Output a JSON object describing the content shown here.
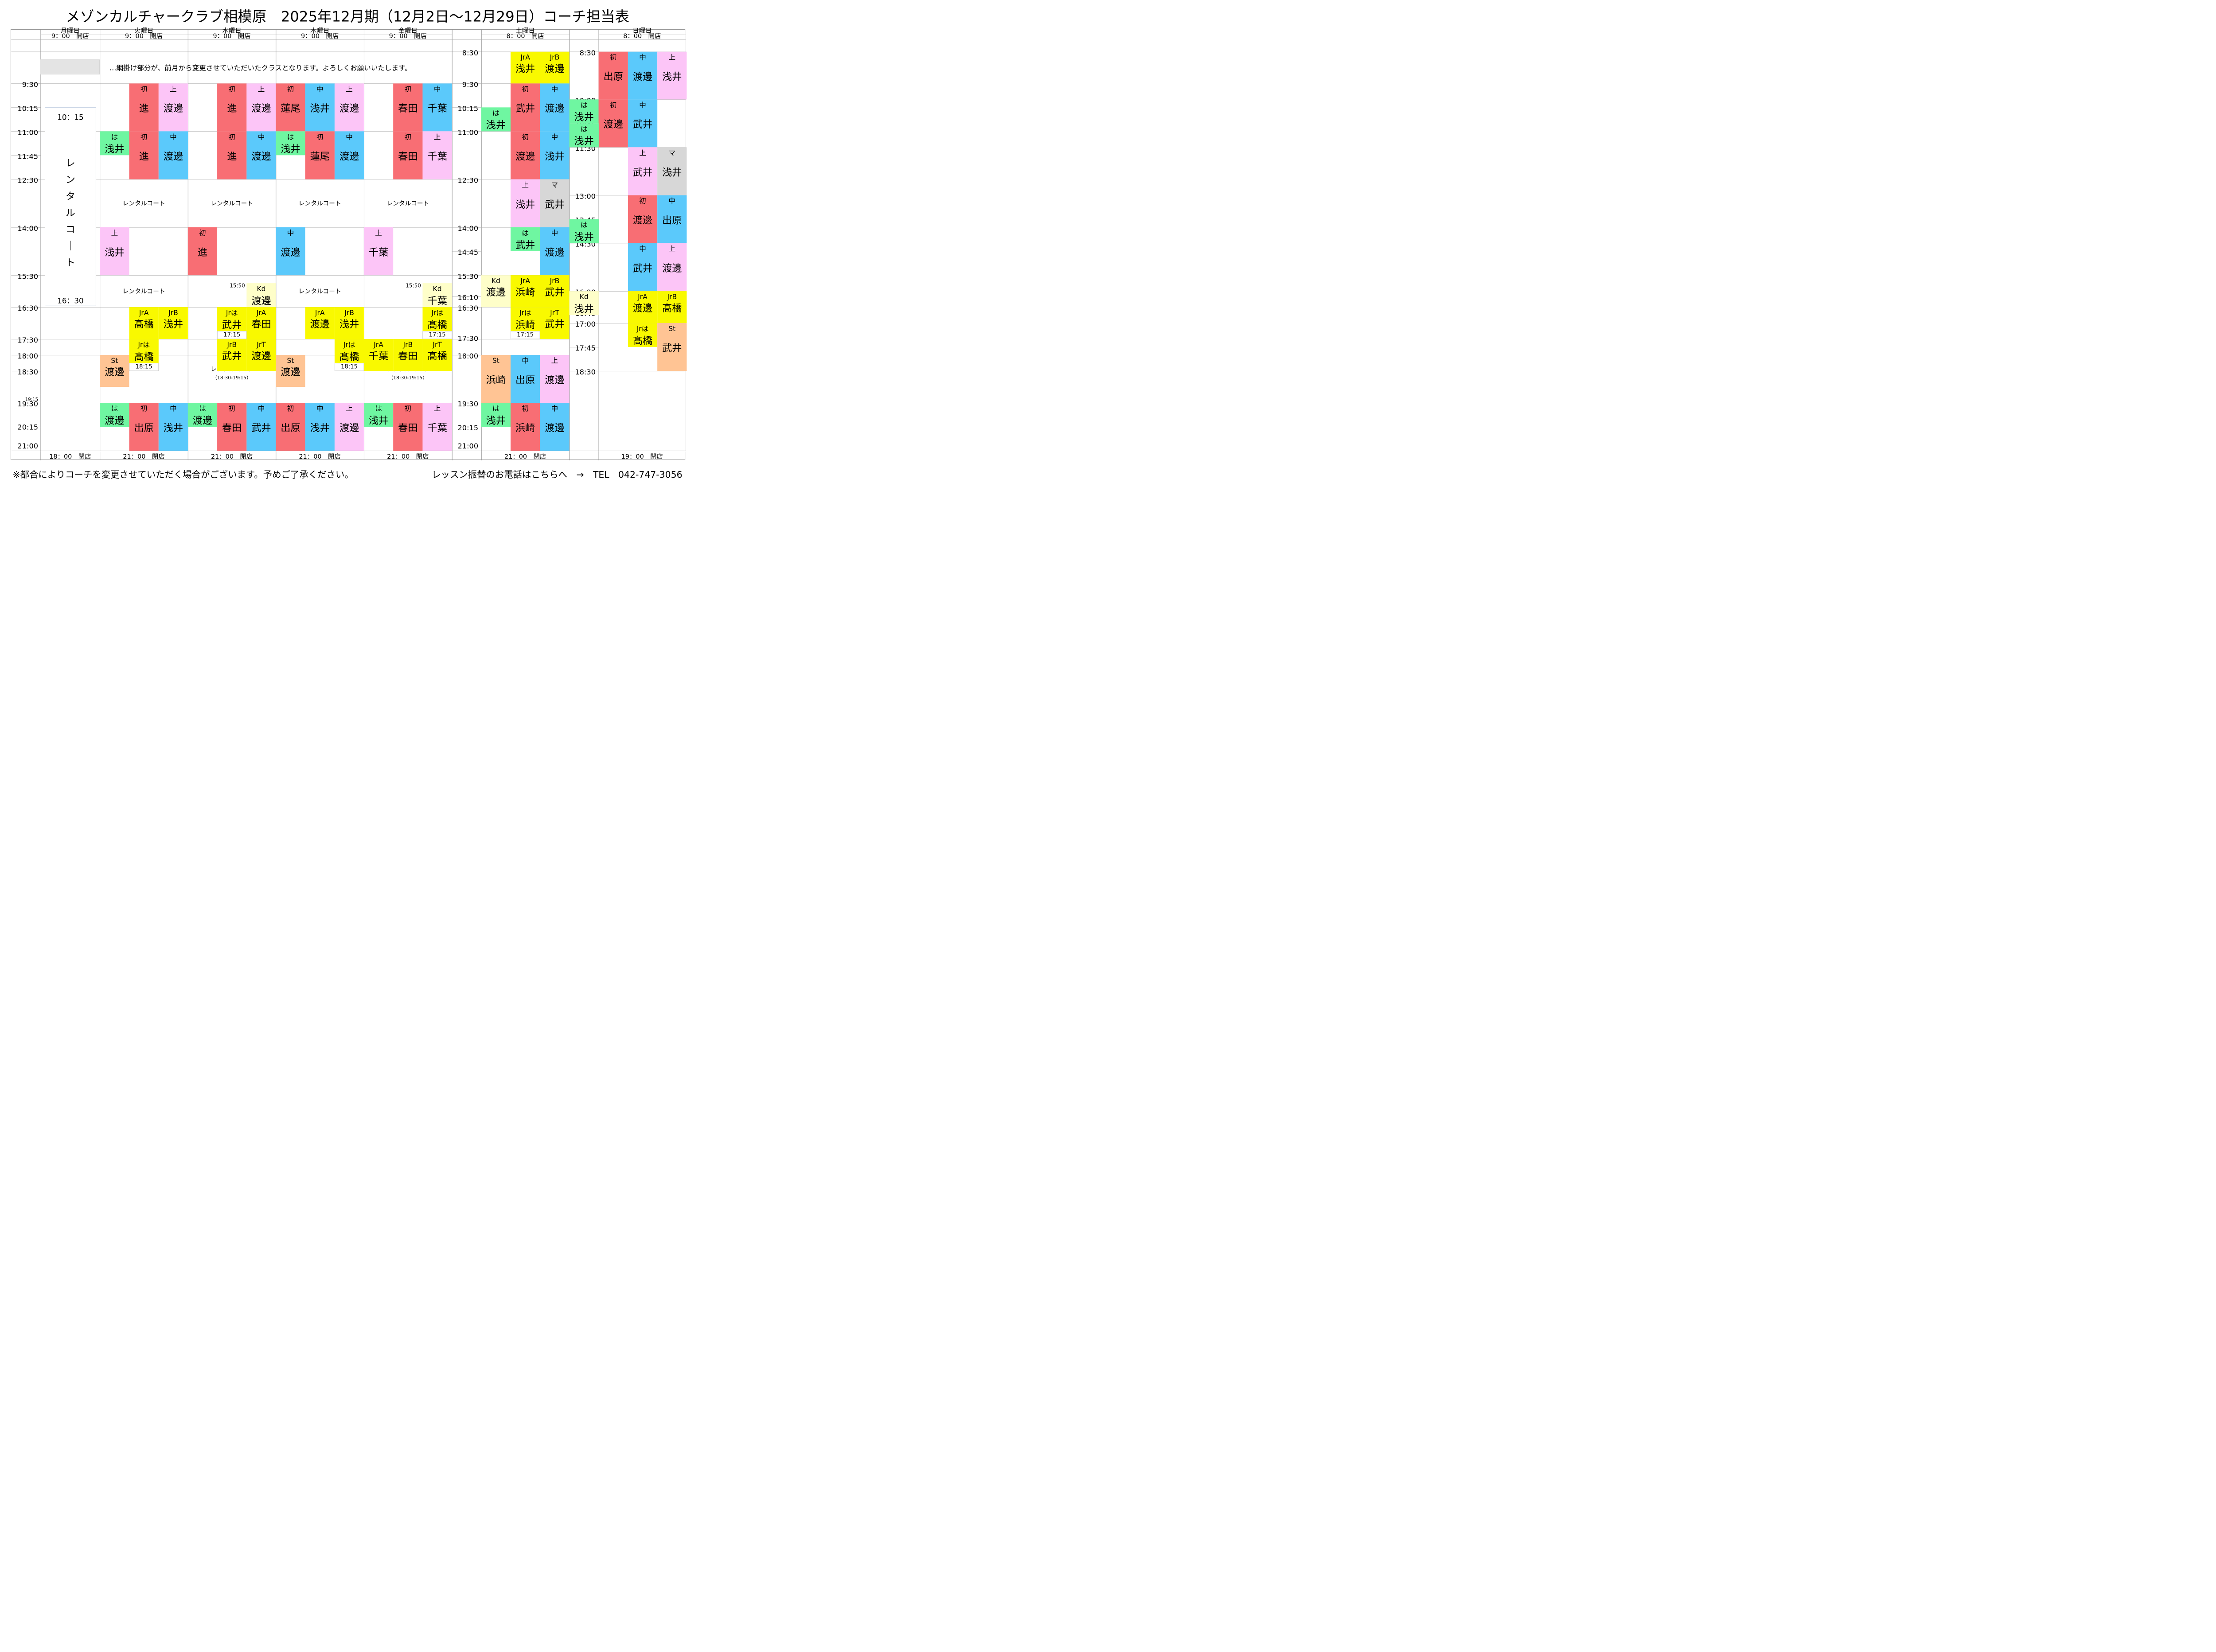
{
  "title": "メゾンカルチャークラブ相模原　2025年12月期（12月2日～12月29日）コーチ担当表",
  "legend": "…網掛け部分が、前月から変更させていただいたクラスとなります。よろしくお願いいたします。",
  "colors": {
    "beginner": "#F86E74",
    "intermediate": "#5BC9FB",
    "advanced": "#FCC5F7",
    "hajime": "#6FF6A1",
    "junior": "#F9F900",
    "kids": "#FEFEC9",
    "stroke": "#FFC494",
    "master": "#D7D7D7"
  },
  "days": {
    "mon": {
      "name": "月曜日",
      "open": "9：00　開店",
      "close": "18：00　閉店"
    },
    "tue": {
      "name": "火曜日",
      "open": "9：00　開店",
      "close": "21：00　閉店"
    },
    "wed": {
      "name": "水曜日",
      "open": "9：00　開店",
      "close": "21：00　閉店"
    },
    "thu": {
      "name": "木曜日",
      "open": "9：00　開店",
      "close": "21：00　閉店"
    },
    "fri": {
      "name": "金曜日",
      "open": "9：00　開店",
      "close": "21：00　閉店"
    },
    "sat": {
      "name": "土曜日",
      "open": "8：00　開店",
      "close": "21：00　閉店"
    },
    "sun": {
      "name": "日曜日",
      "open": "8：00　開店",
      "close": "19：00　閉店"
    }
  },
  "times": {
    "wk": [
      "9:30",
      "10:15",
      "11:00",
      "11:45",
      "12:30",
      "14:00",
      "15:30",
      "16:30",
      "17:30",
      "18:00",
      "18:30",
      "19:15",
      "19:30",
      "20:15",
      "21:00"
    ],
    "sat": [
      "8:30",
      "9:30",
      "10:15",
      "11:00",
      "12:30",
      "14:00",
      "14:45",
      "15:30",
      "16:10",
      "16:30",
      "17:30",
      "18:00",
      "19:30",
      "20:15",
      "21:00"
    ],
    "sun": [
      "8:30",
      "10:00",
      "10:45",
      "11:30",
      "13:00",
      "13:45",
      "14:30",
      "16:00",
      "16:40",
      "17:00",
      "17:45",
      "18:30"
    ]
  },
  "rental_court": "レンタルコート",
  "rental_court_sub": "（18:30-19:15）",
  "mon_rental": {
    "start": "10：15",
    "end": "16：30",
    "label": "レンタルコート"
  },
  "end_times": {
    "e1815": "18:15",
    "e1715": "17:15",
    "s1550": "15:50"
  },
  "classes": [
    {
      "lv": "初",
      "nm": "進",
      "c": "b"
    },
    {
      "lv": "上",
      "nm": "渡邊",
      "c": "a"
    },
    {
      "lv": "は",
      "nm": "浅井",
      "c": "h"
    },
    {
      "lv": "初",
      "nm": "進",
      "c": "b"
    },
    {
      "lv": "中",
      "nm": "渡邊",
      "c": "i"
    },
    {
      "lv": "上",
      "nm": "浅井",
      "c": "a"
    },
    {
      "lv": "JrA",
      "nm": "髙橋",
      "c": "j"
    },
    {
      "lv": "JrB",
      "nm": "浅井",
      "c": "j"
    },
    {
      "lv": "Jrは",
      "nm": "髙橋",
      "c": "j"
    },
    {
      "lv": "St",
      "nm": "渡邊",
      "c": "s"
    },
    {
      "lv": "は",
      "nm": "渡邊",
      "c": "h"
    },
    {
      "lv": "初",
      "nm": "出原",
      "c": "b"
    },
    {
      "lv": "中",
      "nm": "浅井",
      "c": "i"
    },
    {
      "lv": "初",
      "nm": "進",
      "c": "b"
    },
    {
      "lv": "上",
      "nm": "渡邊",
      "c": "a"
    },
    {
      "lv": "初",
      "nm": "進",
      "c": "b"
    },
    {
      "lv": "中",
      "nm": "渡邊",
      "c": "i"
    },
    {
      "lv": "初",
      "nm": "進",
      "c": "b"
    },
    {
      "lv": "Kd",
      "nm": "渡邊",
      "c": "k"
    },
    {
      "lv": "Jrは",
      "nm": "武井",
      "c": "j"
    },
    {
      "lv": "JrA",
      "nm": "春田",
      "c": "j"
    },
    {
      "lv": "JrB",
      "nm": "武井",
      "c": "j"
    },
    {
      "lv": "JrT",
      "nm": "渡邊",
      "c": "j"
    },
    {
      "lv": "は",
      "nm": "渡邊",
      "c": "h"
    },
    {
      "lv": "初",
      "nm": "春田",
      "c": "b"
    },
    {
      "lv": "中",
      "nm": "武井",
      "c": "i"
    },
    {
      "lv": "初",
      "nm": "蓮尾",
      "c": "b"
    },
    {
      "lv": "中",
      "nm": "浅井",
      "c": "i"
    },
    {
      "lv": "上",
      "nm": "渡邊",
      "c": "a"
    },
    {
      "lv": "は",
      "nm": "浅井",
      "c": "h"
    },
    {
      "lv": "初",
      "nm": "蓮尾",
      "c": "b"
    },
    {
      "lv": "中",
      "nm": "渡邊",
      "c": "i"
    },
    {
      "lv": "中",
      "nm": "渡邊",
      "c": "i"
    },
    {
      "lv": "JrA",
      "nm": "渡邊",
      "c": "j"
    },
    {
      "lv": "JrB",
      "nm": "浅井",
      "c": "j"
    },
    {
      "lv": "Jrは",
      "nm": "髙橋",
      "c": "j"
    },
    {
      "lv": "St",
      "nm": "渡邊",
      "c": "s"
    },
    {
      "lv": "初",
      "nm": "出原",
      "c": "b"
    },
    {
      "lv": "中",
      "nm": "浅井",
      "c": "i"
    },
    {
      "lv": "上",
      "nm": "渡邊",
      "c": "a"
    },
    {
      "lv": "初",
      "nm": "春田",
      "c": "b"
    },
    {
      "lv": "中",
      "nm": "千葉",
      "c": "i"
    },
    {
      "lv": "初",
      "nm": "春田",
      "c": "b"
    },
    {
      "lv": "上",
      "nm": "千葉",
      "c": "a"
    },
    {
      "lv": "上",
      "nm": "千葉",
      "c": "a"
    },
    {
      "lv": "Kd",
      "nm": "千葉",
      "c": "k"
    },
    {
      "lv": "Jrは",
      "nm": "髙橋",
      "c": "j"
    },
    {
      "lv": "JrA",
      "nm": "千葉",
      "c": "j"
    },
    {
      "lv": "JrB",
      "nm": "春田",
      "c": "j"
    },
    {
      "lv": "JrT",
      "nm": "髙橋",
      "c": "j"
    },
    {
      "lv": "は",
      "nm": "浅井",
      "c": "h"
    },
    {
      "lv": "初",
      "nm": "春田",
      "c": "b"
    },
    {
      "lv": "上",
      "nm": "千葉",
      "c": "a"
    },
    {
      "lv": "JrA",
      "nm": "浅井",
      "c": "j"
    },
    {
      "lv": "JrB",
      "nm": "渡邊",
      "c": "j"
    },
    {
      "lv": "初",
      "nm": "武井",
      "c": "b"
    },
    {
      "lv": "中",
      "nm": "渡邊",
      "c": "i"
    },
    {
      "lv": "は",
      "nm": "浅井",
      "c": "h"
    },
    {
      "lv": "初",
      "nm": "渡邊",
      "c": "b"
    },
    {
      "lv": "中",
      "nm": "浅井",
      "c": "i"
    },
    {
      "lv": "上",
      "nm": "浅井",
      "c": "a"
    },
    {
      "lv": "マ",
      "nm": "武井",
      "c": "m"
    },
    {
      "lv": "は",
      "nm": "武井",
      "c": "h"
    },
    {
      "lv": "中",
      "nm": "渡邊",
      "c": "i"
    },
    {
      "lv": "Kd",
      "nm": "渡邊",
      "c": "k"
    },
    {
      "lv": "JrA",
      "nm": "浜崎",
      "c": "j"
    },
    {
      "lv": "JrB",
      "nm": "武井",
      "c": "j"
    },
    {
      "lv": "Jrは",
      "nm": "浜崎",
      "c": "j"
    },
    {
      "lv": "JrT",
      "nm": "武井",
      "c": "j"
    },
    {
      "lv": "St",
      "nm": "浜崎",
      "c": "s"
    },
    {
      "lv": "中",
      "nm": "出原",
      "c": "i"
    },
    {
      "lv": "上",
      "nm": "渡邊",
      "c": "a"
    },
    {
      "lv": "は",
      "nm": "浅井",
      "c": "h"
    },
    {
      "lv": "初",
      "nm": "浜崎",
      "c": "b"
    },
    {
      "lv": "中",
      "nm": "渡邊",
      "c": "i"
    },
    {
      "lv": "初",
      "nm": "出原",
      "c": "b"
    },
    {
      "lv": "中",
      "nm": "渡邊",
      "c": "i"
    },
    {
      "lv": "上",
      "nm": "浅井",
      "c": "a"
    },
    {
      "lv": "は",
      "nm": "浅井",
      "c": "h"
    },
    {
      "lv": "初",
      "nm": "渡邊",
      "c": "b"
    },
    {
      "lv": "中",
      "nm": "武井",
      "c": "i"
    },
    {
      "lv": "は",
      "nm": "浅井",
      "c": "h"
    },
    {
      "lv": "上",
      "nm": "武井",
      "c": "a"
    },
    {
      "lv": "マ",
      "nm": "浅井",
      "c": "m"
    },
    {
      "lv": "初",
      "nm": "渡邊",
      "c": "b"
    },
    {
      "lv": "中",
      "nm": "出原",
      "c": "i"
    },
    {
      "lv": "は",
      "nm": "浅井",
      "c": "h"
    },
    {
      "lv": "中",
      "nm": "武井",
      "c": "i"
    },
    {
      "lv": "上",
      "nm": "渡邊",
      "c": "a"
    },
    {
      "lv": "Kd",
      "nm": "浅井",
      "c": "k"
    },
    {
      "lv": "JrA",
      "nm": "渡邊",
      "c": "j"
    },
    {
      "lv": "JrB",
      "nm": "髙橋",
      "c": "j"
    },
    {
      "lv": "Jrは",
      "nm": "髙橋",
      "c": "j"
    },
    {
      "lv": "St",
      "nm": "武井",
      "c": "s"
    }
  ],
  "footer": {
    "note": "※都合によりコーチを変更させていただく場合がございます。予めご了承ください。",
    "tel": "レッスン振替のお電話はこちらへ　→　TEL　042-747-3056"
  }
}
